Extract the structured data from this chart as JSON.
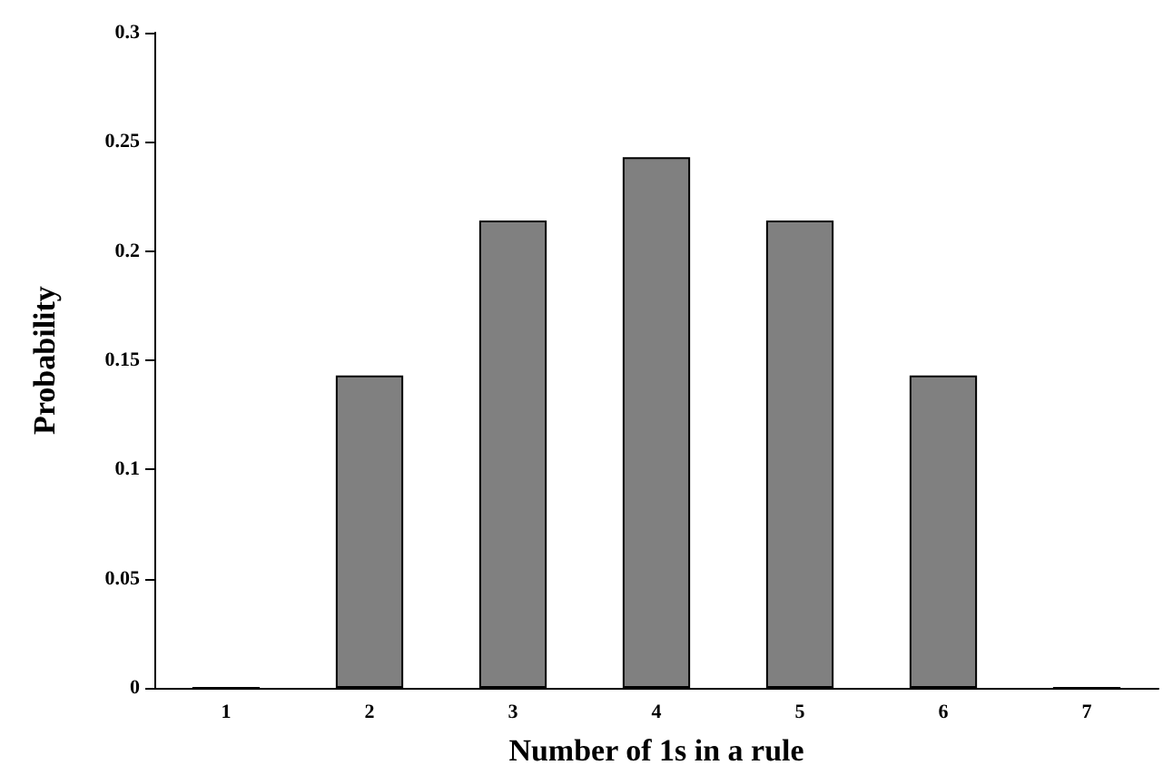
{
  "chart_data": {
    "type": "bar",
    "xlabel": "Number of 1s in a rule",
    "ylabel": "Probability",
    "categories": [
      "1",
      "2",
      "3",
      "4",
      "5",
      "6",
      "7"
    ],
    "values": [
      0,
      0.143,
      0.214,
      0.243,
      0.214,
      0.143,
      0
    ],
    "color": "#808080",
    "ylim": [
      0,
      0.3
    ],
    "yticks": [
      0,
      0.05,
      0.1,
      0.15,
      0.2,
      0.25,
      0.3
    ],
    "grid": false
  }
}
